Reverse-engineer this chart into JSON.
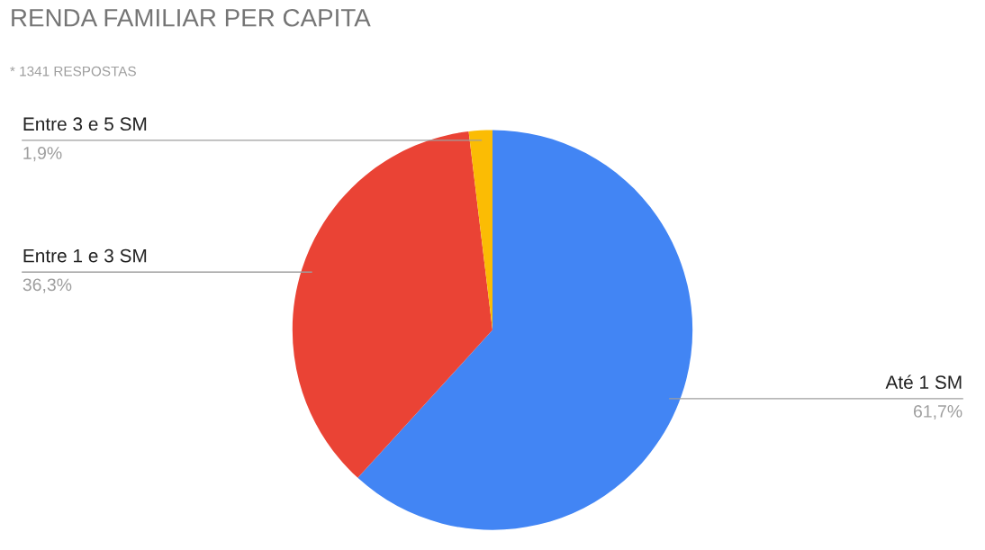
{
  "chart_data": {
    "type": "pie",
    "title": "RENDA FAMILIAR PER CAPITA",
    "subtitle": "* 1341 RESPOSTAS",
    "categories": [
      "Até 1 SM",
      "Entre 1 e 3 SM",
      "Entre 3 e 5 SM"
    ],
    "values": [
      61.7,
      36.3,
      1.9
    ],
    "colors": [
      "#4285f4",
      "#ea4335",
      "#fbbc04"
    ],
    "value_labels": [
      "61,7%",
      "36,3%",
      "1,9%"
    ],
    "legend": false
  }
}
